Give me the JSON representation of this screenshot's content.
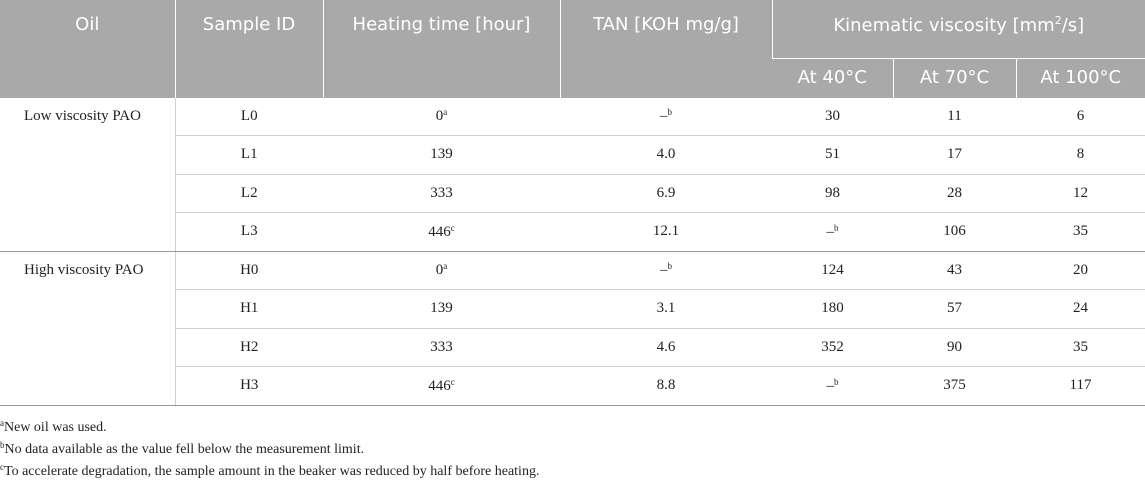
{
  "table": {
    "header": {
      "row1": [
        "Oil",
        "Sample ID",
        "Heating time [hour]",
        "TAN [KOH mg/g]",
        {
          "text": "Kinematic viscosity [mm",
          "sup": "2",
          "after": "/s]"
        }
      ],
      "row2": [
        "At 40°C",
        "At 70°C",
        "At 100°C"
      ]
    },
    "groups": [
      {
        "oil": "Low viscosity PAO",
        "rows": [
          [
            "L0",
            {
              "text": "0",
              "sup": "a"
            },
            {
              "text": "–",
              "sup": "b"
            },
            "30",
            "11",
            "6"
          ],
          [
            "L1",
            "139",
            "4.0",
            "51",
            "17",
            "8"
          ],
          [
            "L2",
            "333",
            "6.9",
            "98",
            "28",
            "12"
          ],
          [
            "L3",
            {
              "text": "446",
              "sup": "c"
            },
            "12.1",
            {
              "text": "–",
              "sup": "b"
            },
            "106",
            "35"
          ]
        ]
      },
      {
        "oil": "High viscosity PAO",
        "rows": [
          [
            "H0",
            {
              "text": "0",
              "sup": "a"
            },
            {
              "text": "–",
              "sup": "b"
            },
            "124",
            "43",
            "20"
          ],
          [
            "H1",
            "139",
            "3.1",
            "180",
            "57",
            "24"
          ],
          [
            "H2",
            "333",
            "4.6",
            "352",
            "90",
            "35"
          ],
          [
            "H3",
            {
              "text": "446",
              "sup": "c"
            },
            "8.8",
            {
              "text": "–",
              "sup": "b"
            },
            "375",
            "117"
          ]
        ]
      }
    ],
    "footnotes": [
      {
        "mark": "a",
        "text": "New oil was used."
      },
      {
        "mark": "b",
        "text": "No data available as the value fell below the measurement limit."
      },
      {
        "mark": "c",
        "text": "To accelerate degradation, the sample amount in the beaker was reduced by half before heating."
      }
    ]
  }
}
